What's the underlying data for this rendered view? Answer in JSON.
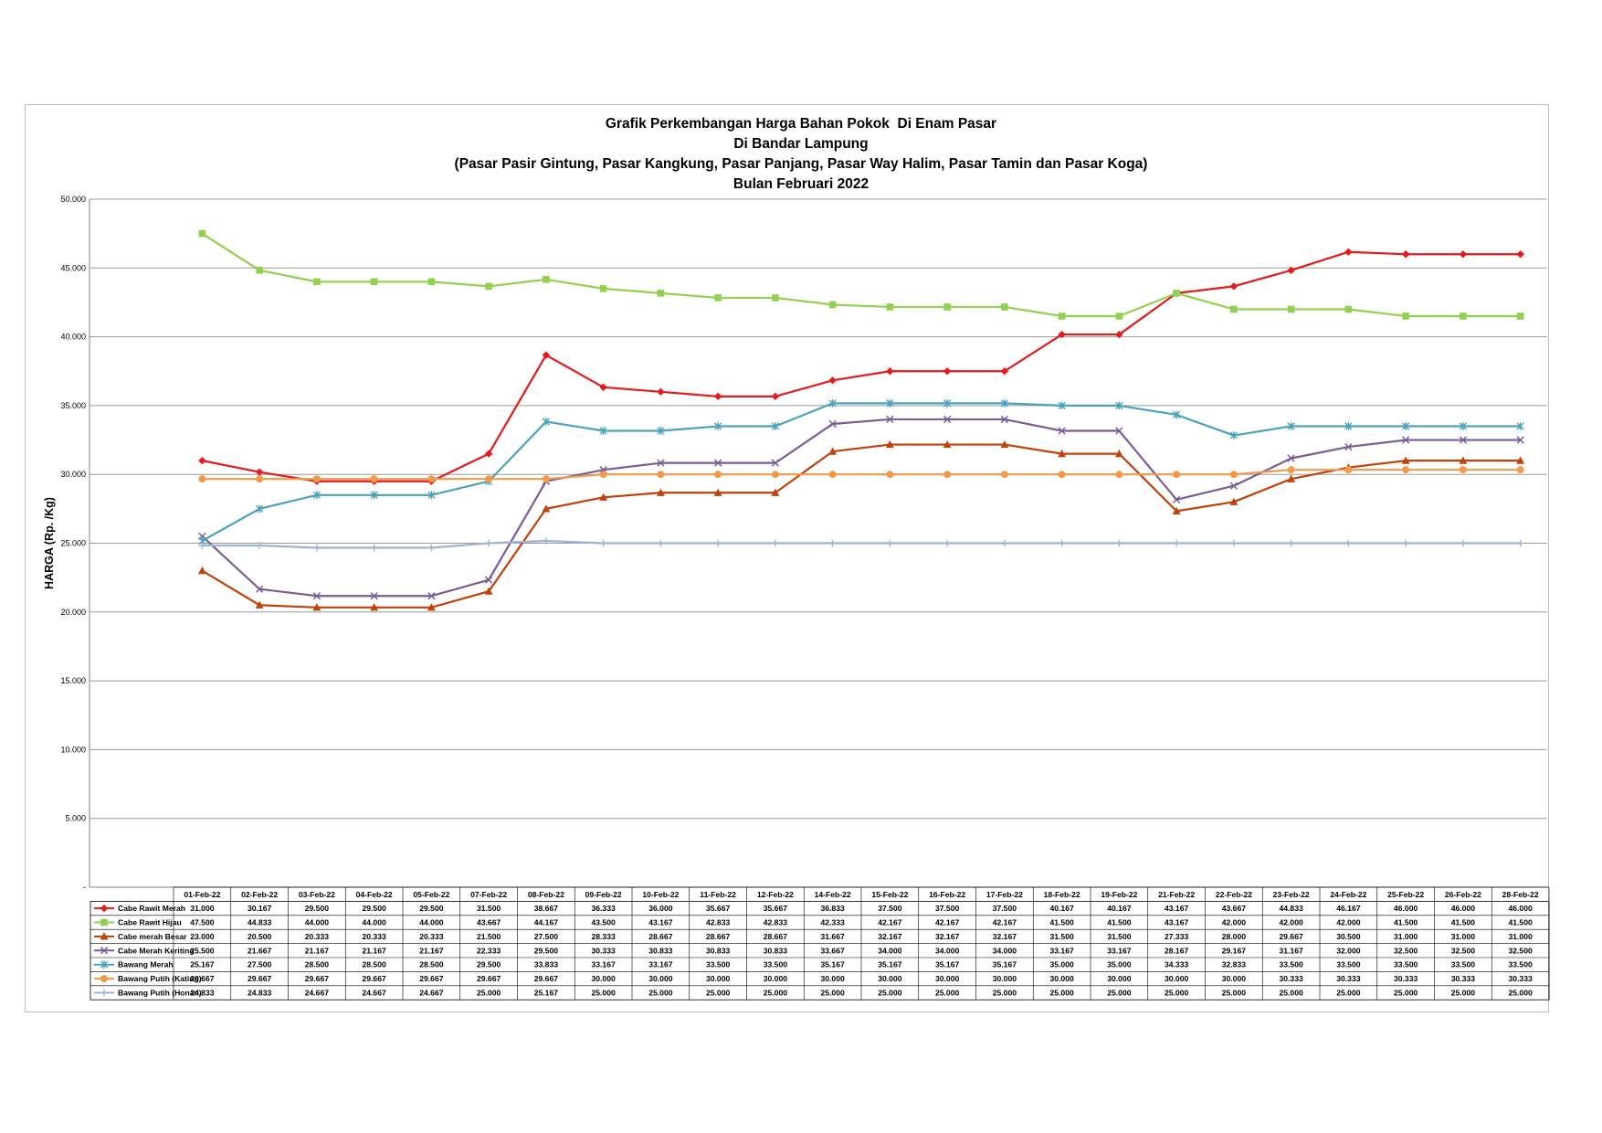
{
  "chart_data": {
    "type": "line",
    "title": [
      "Grafik Perkembangan Harga Bahan Pokok  Di Enam Pasar",
      "Di Bandar Lampung",
      "(Pasar Pasir Gintung, Pasar Kangkung, Pasar Panjang, Pasar Way Halim, Pasar Tamin dan Pasar Koga)",
      "Bulan Februari 2022"
    ],
    "ylabel": "HARGA (Rp. /Kg)",
    "xlabel": "",
    "ylim": [
      0,
      50000
    ],
    "yticks": [
      0,
      5000,
      10000,
      15000,
      20000,
      25000,
      30000,
      35000,
      40000,
      45000,
      50000
    ],
    "ytick_labels": [
      "-",
      "5.000",
      "10.000",
      "15.000",
      "20.000",
      "25.000",
      "30.000",
      "35.000",
      "40.000",
      "45.000",
      "50.000"
    ],
    "grid": "horizontal",
    "legend": "data-table",
    "categories": [
      "01-Feb-22",
      "02-Feb-22",
      "03-Feb-22",
      "04-Feb-22",
      "05-Feb-22",
      "07-Feb-22",
      "08-Feb-22",
      "09-Feb-22",
      "10-Feb-22",
      "11-Feb-22",
      "12-Feb-22",
      "14-Feb-22",
      "15-Feb-22",
      "16-Feb-22",
      "17-Feb-22",
      "18-Feb-22",
      "19-Feb-22",
      "21-Feb-22",
      "22-Feb-22",
      "23-Feb-22",
      "24-Feb-22",
      "25-Feb-22",
      "26-Feb-22",
      "28-Feb-22"
    ],
    "series": [
      {
        "name": "Cabe Rawit Merah",
        "color": "#e41a1c",
        "marker": "diamond",
        "values": [
          31000,
          30167,
          29500,
          29500,
          29500,
          31500,
          38667,
          36333,
          36000,
          35667,
          35667,
          36833,
          37500,
          37500,
          37500,
          40167,
          40167,
          43167,
          43667,
          44833,
          46167,
          46000,
          46000,
          46000
        ],
        "labels": [
          "31.000",
          "30.167",
          "29.500",
          "29.500",
          "29.500",
          "31.500",
          "38.667",
          "36.333",
          "36.000",
          "35.667",
          "35.667",
          "36.833",
          "37.500",
          "37.500",
          "37.500",
          "40.167",
          "40.167",
          "43.167",
          "43.667",
          "44.833",
          "46.167",
          "46.000",
          "46.000",
          "46.000"
        ]
      },
      {
        "name": "Cabe Rawit Hijau",
        "color": "#92d050",
        "marker": "square",
        "values": [
          47500,
          44833,
          44000,
          44000,
          44000,
          43667,
          44167,
          43500,
          43167,
          42833,
          42833,
          42333,
          42167,
          42167,
          42167,
          41500,
          41500,
          43167,
          42000,
          42000,
          42000,
          41500,
          41500,
          41500
        ],
        "labels": [
          "47.500",
          "44.833",
          "44.000",
          "44.000",
          "44.000",
          "43.667",
          "44.167",
          "43.500",
          "43.167",
          "42.833",
          "42.833",
          "42.333",
          "42.167",
          "42.167",
          "42.167",
          "41.500",
          "41.500",
          "43.167",
          "42.000",
          "42.000",
          "42.000",
          "41.500",
          "41.500",
          "41.500"
        ]
      },
      {
        "name": "Cabe merah Besar",
        "color": "#c0420a",
        "marker": "triangle",
        "values": [
          23000,
          20500,
          20333,
          20333,
          20333,
          21500,
          27500,
          28333,
          28667,
          28667,
          28667,
          31667,
          32167,
          32167,
          32167,
          31500,
          31500,
          27333,
          28000,
          29667,
          30500,
          31000,
          31000,
          31000
        ],
        "labels": [
          "23.000",
          "20.500",
          "20.333",
          "20.333",
          "20.333",
          "21.500",
          "27.500",
          "28.333",
          "28.667",
          "28.667",
          "28.667",
          "31.667",
          "32.167",
          "32.167",
          "32.167",
          "31.500",
          "31.500",
          "27.333",
          "28.000",
          "29.667",
          "30.500",
          "31.000",
          "31.000",
          "31.000"
        ]
      },
      {
        "name": "Cabe Merah Keriting",
        "color": "#7a5c98",
        "marker": "x",
        "values": [
          25500,
          21667,
          21167,
          21167,
          21167,
          22333,
          29500,
          30333,
          30833,
          30833,
          30833,
          33667,
          34000,
          34000,
          34000,
          33167,
          33167,
          28167,
          29167,
          31167,
          32000,
          32500,
          32500,
          32500
        ],
        "labels": [
          "25.500",
          "21.667",
          "21.167",
          "21.167",
          "21.167",
          "22.333",
          "29.500",
          "30.333",
          "30.833",
          "30.833",
          "30.833",
          "33.667",
          "34.000",
          "34.000",
          "34.000",
          "33.167",
          "33.167",
          "28.167",
          "29.167",
          "31.167",
          "32.000",
          "32.500",
          "32.500",
          "32.500"
        ]
      },
      {
        "name": "Bawang Merah",
        "color": "#4aa3bb",
        "marker": "star",
        "values": [
          25167,
          27500,
          28500,
          28500,
          28500,
          29500,
          33833,
          33167,
          33167,
          33500,
          33500,
          35167,
          35167,
          35167,
          35167,
          35000,
          35000,
          34333,
          32833,
          33500,
          33500,
          33500,
          33500,
          33500
        ],
        "labels": [
          "25.167",
          "27.500",
          "28.500",
          "28.500",
          "28.500",
          "29.500",
          "33.833",
          "33.167",
          "33.167",
          "33.500",
          "33.500",
          "35.167",
          "35.167",
          "35.167",
          "35.167",
          "35.000",
          "35.000",
          "34.333",
          "32.833",
          "33.500",
          "33.500",
          "33.500",
          "33.500",
          "33.500"
        ]
      },
      {
        "name": "Bawang Putih (Kating)",
        "color": "#f09a4a",
        "marker": "circle",
        "values": [
          29667,
          29667,
          29667,
          29667,
          29667,
          29667,
          29667,
          30000,
          30000,
          30000,
          30000,
          30000,
          30000,
          30000,
          30000,
          30000,
          30000,
          30000,
          30000,
          30333,
          30333,
          30333,
          30333,
          30333
        ],
        "labels": [
          "29.667",
          "29.667",
          "29.667",
          "29.667",
          "29.667",
          "29.667",
          "29.667",
          "30.000",
          "30.000",
          "30.000",
          "30.000",
          "30.000",
          "30.000",
          "30.000",
          "30.000",
          "30.000",
          "30.000",
          "30.000",
          "30.000",
          "30.333",
          "30.333",
          "30.333",
          "30.333",
          "30.333"
        ]
      },
      {
        "name": "Bawang Putih (Honan)",
        "color": "#9fb2d6",
        "marker": "plus",
        "values": [
          24833,
          24833,
          24667,
          24667,
          24667,
          25000,
          25167,
          25000,
          25000,
          25000,
          25000,
          25000,
          25000,
          25000,
          25000,
          25000,
          25000,
          25000,
          25000,
          25000,
          25000,
          25000,
          25000,
          25000
        ],
        "labels": [
          "24.833",
          "24.833",
          "24.667",
          "24.667",
          "24.667",
          "25.000",
          "25.167",
          "25.000",
          "25.000",
          "25.000",
          "25.000",
          "25.000",
          "25.000",
          "25.000",
          "25.000",
          "25.000",
          "25.000",
          "25.000",
          "25.000",
          "25.000",
          "25.000",
          "25.000",
          "25.000",
          "25.000"
        ]
      }
    ]
  }
}
